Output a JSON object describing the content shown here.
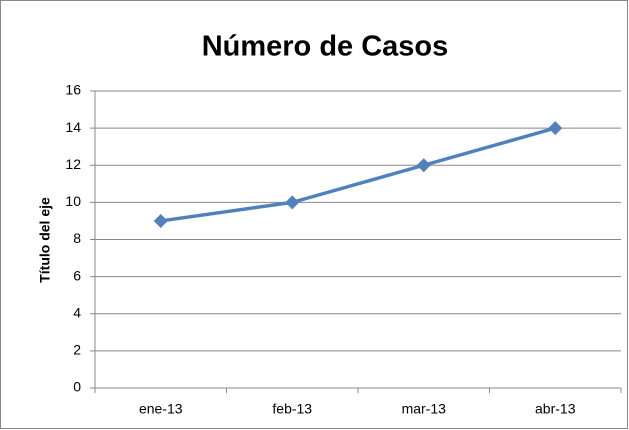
{
  "chart_data": {
    "type": "line",
    "title": "Número de Casos",
    "y_label": "Título del eje",
    "categories": [
      "ene-13",
      "feb-13",
      "mar-13",
      "abr-13"
    ],
    "series": [
      {
        "name": "Número de Casos",
        "color": "#4f81bd",
        "values": [
          9,
          10,
          12,
          14
        ]
      }
    ],
    "ylim": [
      0,
      16
    ],
    "yticks": [
      0,
      2,
      4,
      6,
      8,
      10,
      12,
      14,
      16
    ],
    "grid": true
  }
}
